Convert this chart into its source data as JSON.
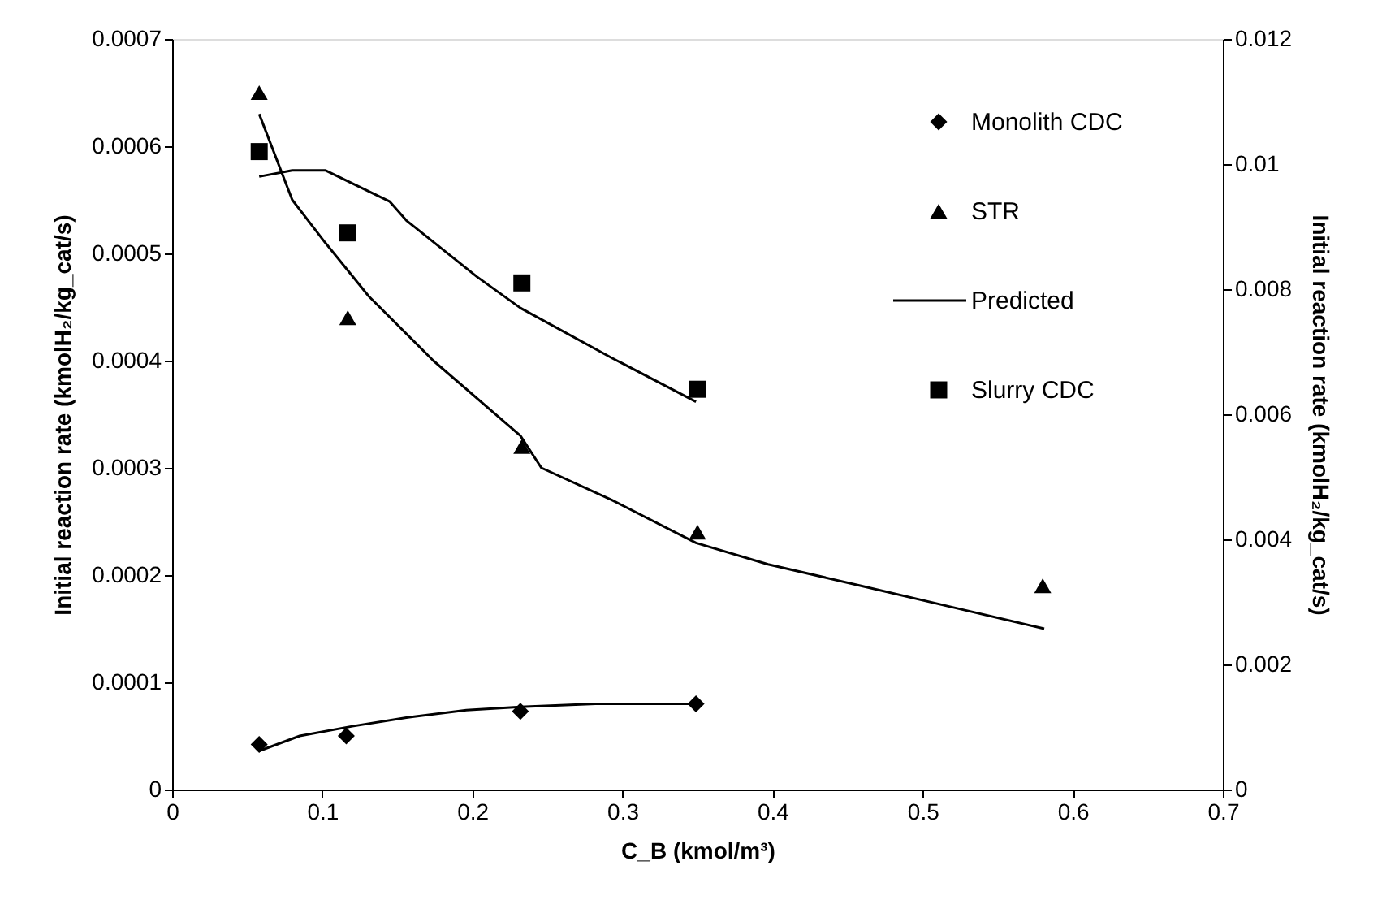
{
  "chart_data": {
    "type": "scatter",
    "xlabel": "C_B (kmol/m³)",
    "ylabel": "Initial reaction rate (kmolH₂/kg_cat/s)",
    "y2label": "Initial reaction rate (kmolH₂/kg_cat/s)",
    "xlim": [
      0,
      0.7
    ],
    "xticks": [
      0,
      0.1,
      0.2,
      0.3,
      0.4,
      0.5,
      0.6,
      0.7
    ],
    "ylim": [
      0,
      0.0007
    ],
    "yticks": [
      0,
      0.0001,
      0.0002,
      0.0003,
      0.0004,
      0.0005,
      0.0006,
      0.0007
    ],
    "y2lim": [
      0,
      0.012
    ],
    "y2ticks": [
      0,
      0.002,
      0.004,
      0.006,
      0.008,
      0.01,
      0.012
    ],
    "grid": false,
    "legend": "top right",
    "series": [
      {
        "name": "Monolith CDC",
        "marker": "diamond",
        "color": "#000000",
        "x": [
          0.058,
          0.116,
          0.232,
          0.349
        ],
        "values": [
          4.2e-05,
          5e-05,
          7.3e-05,
          8e-05
        ]
      },
      {
        "name": "STR",
        "marker": "triangle",
        "color": "#000000",
        "x": [
          0.058,
          0.117,
          0.233,
          0.35,
          0.58
        ],
        "values": [
          0.00065,
          0.00044,
          0.00032,
          0.00024,
          0.00019
        ]
      },
      {
        "name": "Predicted",
        "type": "line",
        "line_style": "solid",
        "color": "#000000",
        "x": [
          0.058,
          0.085,
          0.12,
          0.156,
          0.196,
          0.232,
          0.282,
          0.349
        ],
        "values": [
          3.6e-05,
          5e-05,
          5.9e-05,
          6.7e-05,
          7.4e-05,
          7.7e-05,
          8e-05,
          8e-05
        ]
      },
      {
        "name": "Slurry CDC",
        "marker": "square",
        "axis": "y2",
        "color": "#000000",
        "x": [
          0.058,
          0.117,
          0.233,
          0.35
        ],
        "values": [
          0.0102,
          0.0089,
          0.0081,
          0.0064
        ]
      },
      {
        "type": "line",
        "line_style": "solid",
        "color": "#000000",
        "x": [
          0.058,
          0.08,
          0.102,
          0.131,
          0.174,
          0.232,
          0.246,
          0.293,
          0.349,
          0.397,
          0.459,
          0.52,
          0.581
        ],
        "values": [
          0.00063,
          0.00055,
          0.00051,
          0.00046,
          0.0004,
          0.00033,
          0.0003,
          0.00027,
          0.00023,
          0.00021,
          0.00019,
          0.00017,
          0.00015
        ]
      },
      {
        "type": "line",
        "line_style": "solid",
        "axis": "y2",
        "color": "#000000",
        "x": [
          0.058,
          0.08,
          0.102,
          0.145,
          0.156,
          0.203,
          0.232,
          0.293,
          0.349
        ],
        "values": [
          0.0098,
          0.0099,
          0.0099,
          0.0094,
          0.0091,
          0.0082,
          0.0077,
          0.0069,
          0.0062
        ]
      }
    ]
  }
}
